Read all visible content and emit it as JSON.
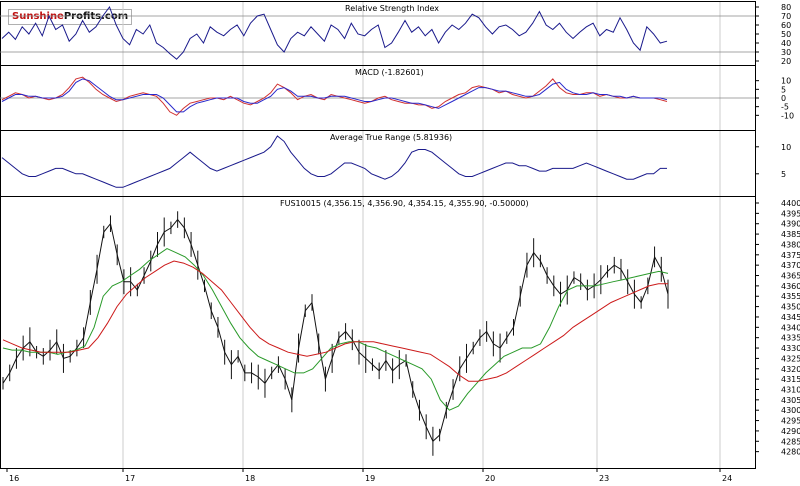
{
  "logo": {
    "part1": "Sunshine",
    "part2": "Profits.com"
  },
  "chart_data": [
    {
      "type": "line",
      "title": "Relative Strength Index",
      "ylim": [
        20,
        80
      ],
      "yticks": [
        80,
        70,
        60,
        50,
        40,
        30,
        20
      ],
      "reference_lines": [
        30,
        70
      ],
      "series": [
        {
          "color": "#1a1a8c",
          "values": [
            45,
            52,
            44,
            58,
            50,
            62,
            48,
            70,
            55,
            60,
            42,
            50,
            65,
            52,
            58,
            70,
            80,
            60,
            45,
            38,
            55,
            50,
            60,
            40,
            35,
            28,
            22,
            30,
            45,
            50,
            40,
            58,
            52,
            48,
            55,
            60,
            48,
            62,
            70,
            72,
            55,
            38,
            30,
            45,
            52,
            48,
            58,
            50,
            42,
            60,
            55,
            45,
            62,
            50,
            48,
            55,
            60,
            35,
            40,
            52,
            65,
            52,
            58,
            48,
            55,
            40,
            52,
            60,
            55,
            62,
            72,
            68,
            58,
            50,
            58,
            60,
            55,
            48,
            52,
            62,
            75,
            60,
            55,
            62,
            52,
            45,
            52,
            58,
            62,
            48,
            55,
            52,
            68,
            55,
            40,
            32,
            58,
            50,
            40,
            42
          ]
        }
      ]
    },
    {
      "type": "line",
      "title": "MACD (-1.82601)",
      "ylim": [
        -15,
        15
      ],
      "yticks": [
        10,
        5,
        0,
        -5,
        -10
      ],
      "reference_lines": [
        0
      ],
      "series": [
        {
          "color": "#d03030",
          "values": [
            -1,
            1,
            3,
            2,
            0,
            1,
            0,
            -1,
            0,
            2,
            6,
            11,
            12,
            9,
            5,
            2,
            0,
            -2,
            -1,
            1,
            2,
            3,
            2,
            1,
            -3,
            -8,
            -10,
            -6,
            -3,
            -2,
            -1,
            0,
            0,
            -1,
            1,
            -1,
            -3,
            -4,
            -2,
            0,
            3,
            8,
            6,
            3,
            -1,
            1,
            2,
            0,
            -1,
            2,
            1,
            0,
            -1,
            -2,
            -3,
            -2,
            0,
            1,
            -1,
            -2,
            -3,
            -3,
            -4,
            -4,
            -6,
            -5,
            -2,
            0,
            2,
            3,
            6,
            7,
            6,
            5,
            3,
            4,
            2,
            1,
            0,
            1,
            4,
            7,
            11,
            6,
            3,
            2,
            2,
            3,
            3,
            1,
            2,
            1,
            0,
            0,
            1,
            0,
            0,
            0,
            -1,
            -2
          ]
        },
        {
          "color": "#2a2acc",
          "values": [
            -2,
            0,
            2,
            2,
            1,
            1,
            0,
            0,
            0,
            1,
            4,
            9,
            11,
            10,
            7,
            4,
            1,
            -1,
            -1,
            0,
            1,
            2,
            2,
            2,
            0,
            -4,
            -8,
            -8,
            -5,
            -3,
            -2,
            -1,
            0,
            0,
            0,
            0,
            -2,
            -3,
            -3,
            -1,
            1,
            5,
            6,
            4,
            1,
            1,
            1,
            0,
            0,
            1,
            1,
            1,
            0,
            -1,
            -2,
            -2,
            -1,
            0,
            0,
            -1,
            -2,
            -3,
            -3,
            -4,
            -5,
            -6,
            -4,
            -2,
            0,
            2,
            4,
            6,
            6,
            5,
            4,
            4,
            3,
            2,
            1,
            1,
            2,
            5,
            8,
            9,
            5,
            3,
            2,
            2,
            3,
            2,
            2,
            1,
            1,
            0,
            1,
            0,
            0,
            0,
            0,
            -1
          ]
        }
      ]
    },
    {
      "type": "line",
      "title": "Average True Range (5.81936)",
      "ylim": [
        2,
        12
      ],
      "yticks": [
        10,
        5
      ],
      "series": [
        {
          "color": "#1a1a8c",
          "values": [
            8,
            7,
            6,
            5,
            4.5,
            4.5,
            5,
            5.5,
            6,
            6,
            5.5,
            5,
            5,
            4.5,
            4,
            3.5,
            3,
            2.5,
            2.5,
            3,
            3.5,
            4,
            4.5,
            5,
            5.5,
            6,
            7,
            8,
            9,
            8,
            7,
            6,
            5.5,
            6,
            6.5,
            7,
            7.5,
            8,
            8.5,
            9,
            10,
            12,
            11,
            9,
            7.5,
            6,
            5,
            4.5,
            4.5,
            5,
            6,
            7,
            7,
            6.5,
            6,
            5,
            4.5,
            4,
            4.5,
            5.5,
            7,
            9,
            9.5,
            9.5,
            9,
            8,
            7,
            6,
            5,
            4.5,
            4.5,
            5,
            5.5,
            6,
            6.5,
            7,
            7,
            6.5,
            6.5,
            6,
            5.5,
            5.5,
            6,
            6,
            6,
            6,
            6.5,
            7,
            6.5,
            6,
            5.5,
            5,
            4.5,
            4,
            4,
            4.5,
            5,
            5,
            6,
            6
          ]
        }
      ]
    },
    {
      "type": "line",
      "title": "FUS10015 (4,356.15, 4,356.90, 4,354.15, 4,355.90, -0.50000)",
      "ylim": [
        4275,
        4400
      ],
      "yticks": [
        4400,
        4395,
        4390,
        4385,
        4380,
        4375,
        4370,
        4365,
        4360,
        4355,
        4350,
        4345,
        4340,
        4335,
        4330,
        4325,
        4320,
        4315,
        4310,
        4305,
        4300,
        4295,
        4290,
        4285,
        4280
      ],
      "x_ticks": [
        "16",
        "17",
        "18",
        "19",
        "20",
        "23",
        "24"
      ],
      "price_color": "#111111",
      "series": [
        {
          "color": "#111111",
          "values": [
            4313,
            4318,
            4325,
            4330,
            4333,
            4328,
            4326,
            4329,
            4333,
            4325,
            4326,
            4330,
            4335,
            4352,
            4368,
            4386,
            4390,
            4375,
            4362,
            4362,
            4358,
            4365,
            4372,
            4380,
            4386,
            4388,
            4392,
            4388,
            4380,
            4370,
            4360,
            4348,
            4340,
            4328,
            4322,
            4326,
            4318,
            4318,
            4316,
            4313,
            4318,
            4322,
            4315,
            4305,
            4330,
            4348,
            4352,
            4332,
            4315,
            4325,
            4335,
            4338,
            4334,
            4328,
            4325,
            4322,
            4319,
            4324,
            4319,
            4322,
            4324,
            4310,
            4300,
            4292,
            4285,
            4288,
            4300,
            4310,
            4320,
            4325,
            4330,
            4335,
            4338,
            4332,
            4330,
            4335,
            4340,
            4355,
            4370,
            4376,
            4372,
            4365,
            4360,
            4356,
            4358,
            4364,
            4362,
            4358,
            4360,
            4363,
            4367,
            4370,
            4368,
            4362,
            4356,
            4352,
            4360,
            4374,
            4368,
            4356
          ]
        },
        {
          "color": "#2a9a2a",
          "values": [
            4330,
            4329,
            4329,
            4328,
            4328,
            4328,
            4327,
            4328,
            4329,
            4331,
            4340,
            4355,
            4360,
            4362,
            4365,
            4368,
            4372,
            4375,
            4378,
            4376,
            4374,
            4370,
            4365,
            4358,
            4350,
            4342,
            4335,
            4330,
            4326,
            4324,
            4322,
            4320,
            4318,
            4318,
            4320,
            4325,
            4330,
            4332,
            4333,
            4333,
            4331,
            4330,
            4328,
            4326,
            4324,
            4322,
            4320,
            4315,
            4305,
            4300,
            4302,
            4308,
            4313,
            4318,
            4322,
            4326,
            4328,
            4330,
            4330,
            4332,
            4340,
            4350,
            4358,
            4360,
            4360,
            4360,
            4361,
            4362,
            4363,
            4364,
            4365,
            4366,
            4367,
            4366
          ]
        },
        {
          "color": "#cc1a1a",
          "values": [
            4334,
            4332,
            4330,
            4329,
            4328,
            4328,
            4328,
            4328,
            4329,
            4330,
            4335,
            4342,
            4350,
            4356,
            4360,
            4364,
            4367,
            4370,
            4372,
            4371,
            4369,
            4366,
            4362,
            4358,
            4352,
            4346,
            4340,
            4335,
            4332,
            4330,
            4328,
            4327,
            4326,
            4327,
            4328,
            4330,
            4332,
            4333,
            4333,
            4333,
            4332,
            4331,
            4330,
            4329,
            4328,
            4327,
            4324,
            4321,
            4317,
            4314,
            4314,
            4315,
            4316,
            4318,
            4321,
            4324,
            4327,
            4330,
            4333,
            4336,
            4340,
            4343,
            4346,
            4349,
            4352,
            4354,
            4356,
            4358,
            4360,
            4361,
            4361
          ]
        }
      ]
    }
  ]
}
